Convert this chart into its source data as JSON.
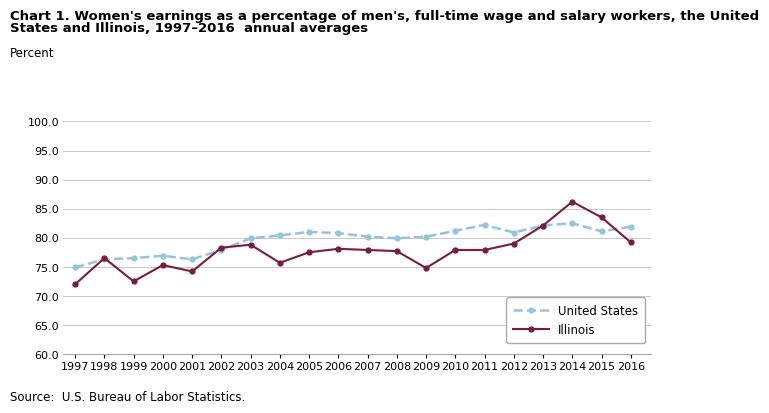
{
  "title_line1": "Chart 1. Women's earnings as a percentage of men's, full-time wage and salary workers, the United",
  "title_line2": "States and Illinois, 1997–2016  annual averages",
  "ylabel": "Percent",
  "source": "Source:  U.S. Bureau of Labor Statistics.",
  "years": [
    1997,
    1998,
    1999,
    2000,
    2001,
    2002,
    2003,
    2004,
    2005,
    2006,
    2007,
    2008,
    2009,
    2010,
    2011,
    2012,
    2013,
    2014,
    2015,
    2016
  ],
  "us_values": [
    74.9,
    76.3,
    76.5,
    76.9,
    76.3,
    77.9,
    79.9,
    80.4,
    81.0,
    80.8,
    80.2,
    79.9,
    80.2,
    81.2,
    82.2,
    80.9,
    82.1,
    82.5,
    81.1,
    81.9
  ],
  "il_values": [
    72.0,
    76.5,
    72.5,
    75.3,
    74.2,
    78.3,
    78.8,
    75.7,
    77.5,
    78.1,
    77.9,
    77.7,
    74.8,
    77.9,
    77.9,
    79.0,
    82.1,
    86.2,
    83.5,
    79.2
  ],
  "us_color": "#92C5DE",
  "il_color": "#7B1C3E",
  "us_label": "United States",
  "il_label": "Illinois",
  "ylim": [
    60.0,
    100.0
  ],
  "yticks": [
    60.0,
    65.0,
    70.0,
    75.0,
    80.0,
    85.0,
    90.0,
    95.0,
    100.0
  ],
  "background_color": "#ffffff",
  "grid_color": "#c8c8c8",
  "title_fontsize": 9.5,
  "axis_fontsize": 8.5,
  "tick_fontsize": 8,
  "legend_fontsize": 8.5
}
